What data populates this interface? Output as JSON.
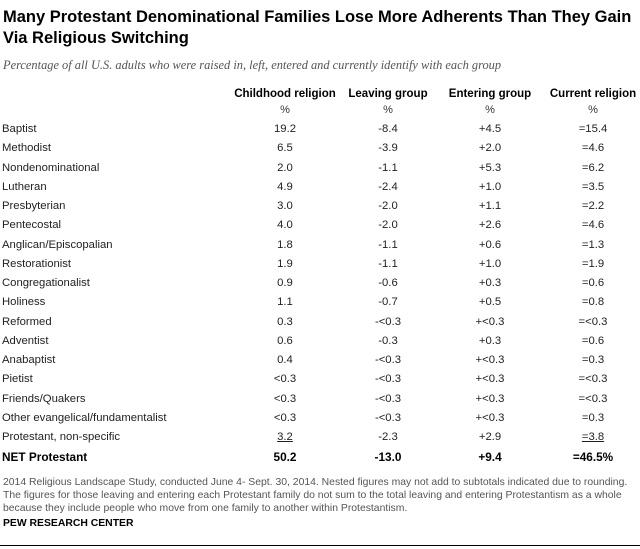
{
  "title": "Many Protestant Denominational Families Lose More Adherents Than They Gain Via Religious Switching",
  "subtitle": "Percentage of all U.S. adults who were raised in, left, entered and currently identify with each group",
  "chart_data": {
    "type": "table",
    "columns": [
      "Childhood religion",
      "Leaving group",
      "Entering group",
      "Current religion"
    ],
    "units": [
      "%",
      "%",
      "%",
      "%"
    ],
    "rows": [
      {
        "label": "Baptist",
        "values": [
          "19.2",
          "-8.4",
          "+4.5",
          "=15.4"
        ]
      },
      {
        "label": "Methodist",
        "values": [
          "6.5",
          "-3.9",
          "+2.0",
          "=4.6"
        ]
      },
      {
        "label": "Nondenominational",
        "values": [
          "2.0",
          "-1.1",
          "+5.3",
          "=6.2"
        ]
      },
      {
        "label": "Lutheran",
        "values": [
          "4.9",
          "-2.4",
          "+1.0",
          "=3.5"
        ]
      },
      {
        "label": "Presbyterian",
        "values": [
          "3.0",
          "-2.0",
          "+1.1",
          "=2.2"
        ]
      },
      {
        "label": "Pentecostal",
        "values": [
          "4.0",
          "-2.0",
          "+2.6",
          "=4.6"
        ]
      },
      {
        "label": "Anglican/Episcopalian",
        "values": [
          "1.8",
          "-1.1",
          "+0.6",
          "=1.3"
        ]
      },
      {
        "label": "Restorationist",
        "values": [
          "1.9",
          "-1.1",
          "+1.0",
          "=1.9"
        ]
      },
      {
        "label": "Congregationalist",
        "values": [
          "0.9",
          "-0.6",
          "+0.3",
          "=0.6"
        ]
      },
      {
        "label": "Holiness",
        "values": [
          "1.1",
          "-0.7",
          "+0.5",
          "=0.8"
        ]
      },
      {
        "label": "Reformed",
        "values": [
          "0.3",
          "-<0.3",
          "+<0.3",
          "=<0.3"
        ]
      },
      {
        "label": "Adventist",
        "values": [
          "0.6",
          "-0.3",
          "+0.3",
          "=0.6"
        ]
      },
      {
        "label": "Anabaptist",
        "values": [
          "0.4",
          "-<0.3",
          "+<0.3",
          "=0.3"
        ]
      },
      {
        "label": "Pietist",
        "values": [
          "<0.3",
          "-<0.3",
          "+<0.3",
          "=<0.3"
        ]
      },
      {
        "label": "Friends/Quakers",
        "values": [
          "<0.3",
          "-<0.3",
          "+<0.3",
          "=<0.3"
        ]
      },
      {
        "label": "Other evangelical/fundamentalist",
        "values": [
          "<0.3",
          "-<0.3",
          "+<0.3",
          "=0.3"
        ]
      },
      {
        "label": "Protestant, non-specific",
        "values": [
          "3.2",
          "-2.3",
          "+2.9",
          "=3.8"
        ],
        "underlined": [
          true,
          false,
          false,
          true
        ]
      },
      {
        "label": "NET Protestant",
        "values": [
          "50.2",
          "-13.0",
          "+9.4",
          "=46.5%"
        ],
        "bold": true
      }
    ]
  },
  "note": "2014 Religious Landscape Study, conducted June 4- Sept. 30, 2014. Nested figures may not add to subtotals indicated due to rounding. The figures for those leaving and entering each Protestant family do not sum to the total leaving and entering Protestantism as a whole because they include people who move from one family to another within Protestantism.",
  "source": "PEW RESEARCH CENTER"
}
